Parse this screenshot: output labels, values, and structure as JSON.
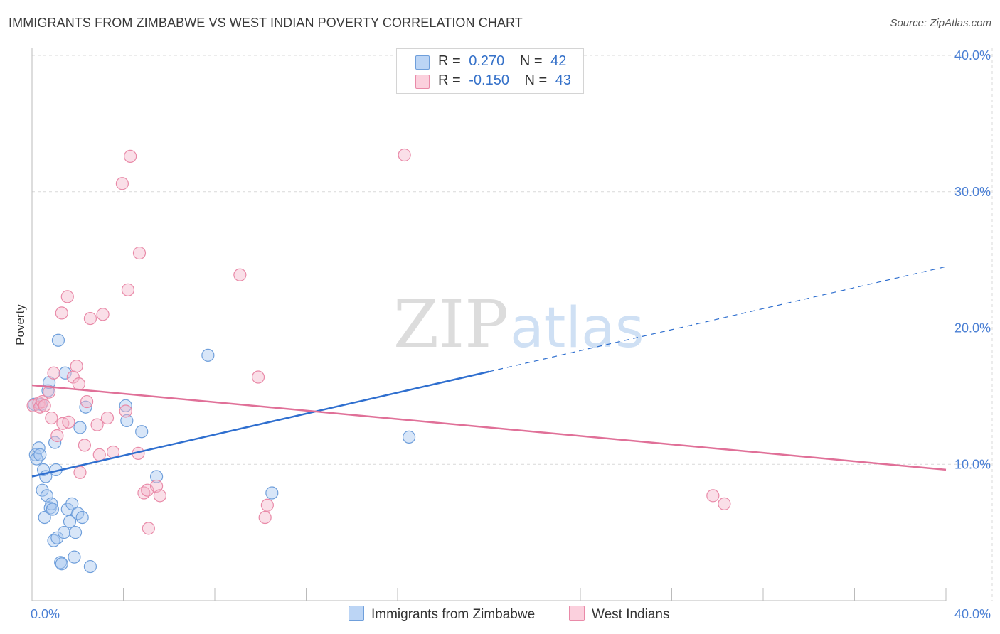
{
  "title": "IMMIGRANTS FROM ZIMBABWE VS WEST INDIAN POVERTY CORRELATION CHART",
  "source": "Source: ZipAtlas.com",
  "watermark": {
    "zip": "ZIP",
    "atlas": "atlas"
  },
  "legend": {
    "rows": [
      {
        "r_label": "R =",
        "r_value": "0.270",
        "n_label": "N =",
        "n_value": "42"
      },
      {
        "r_label": "R =",
        "r_value": "-0.150",
        "n_label": "N =",
        "n_value": "43"
      }
    ]
  },
  "colors": {
    "blue_fill": "#a8c8f0",
    "blue_stroke": "#6f9fdb",
    "blue_line": "#2f6fcf",
    "pink_fill": "#f5b8cb",
    "pink_stroke": "#e98aa8",
    "pink_line": "#e07098",
    "grid": "#d9d9d9",
    "tick_text": "#4a7fd4"
  },
  "chart_data": {
    "type": "scatter",
    "title": "IMMIGRANTS FROM ZIMBABWE VS WEST INDIAN POVERTY CORRELATION CHART",
    "xlabel": "",
    "ylabel": "Poverty",
    "xlim": [
      0,
      40
    ],
    "ylim": [
      0,
      40
    ],
    "x_tick_labels": [
      "0.0%",
      "40.0%"
    ],
    "y_ticks": [
      10,
      20,
      30,
      40
    ],
    "y_tick_labels": [
      "10.0%",
      "20.0%",
      "30.0%",
      "40.0%"
    ],
    "series": [
      {
        "name": "Immigrants from Zimbabwe",
        "color": "#6f9fdb",
        "x": [
          0.1,
          0.15,
          0.2,
          0.3,
          0.35,
          0.4,
          0.45,
          0.5,
          0.55,
          0.6,
          0.65,
          0.7,
          0.75,
          0.8,
          0.85,
          0.9,
          0.95,
          1.0,
          1.05,
          1.1,
          1.15,
          1.25,
          1.3,
          1.4,
          1.45,
          1.55,
          1.65,
          1.75,
          1.85,
          1.9,
          2.0,
          2.1,
          2.2,
          2.35,
          2.55,
          4.1,
          4.15,
          4.8,
          5.45,
          7.7,
          10.5,
          16.5
        ],
        "y": [
          14.4,
          10.7,
          10.4,
          11.2,
          10.7,
          14.4,
          8.1,
          9.6,
          6.1,
          9.1,
          7.7,
          15.4,
          16.0,
          6.8,
          7.1,
          6.7,
          4.4,
          11.6,
          9.6,
          4.6,
          19.1,
          2.8,
          2.7,
          5.0,
          16.7,
          6.7,
          5.8,
          7.1,
          3.2,
          5.0,
          6.4,
          12.7,
          6.1,
          14.2,
          2.5,
          14.3,
          13.2,
          12.4,
          9.1,
          18.0,
          7.9,
          12.0
        ]
      },
      {
        "name": "West Indians",
        "color": "#e98aa8",
        "x": [
          0.05,
          0.3,
          0.35,
          0.45,
          0.55,
          0.75,
          0.85,
          0.95,
          1.1,
          1.3,
          1.35,
          1.55,
          1.6,
          1.8,
          1.95,
          2.05,
          2.1,
          2.3,
          2.4,
          2.55,
          2.85,
          2.95,
          3.1,
          3.3,
          3.55,
          3.95,
          4.1,
          4.2,
          4.3,
          4.65,
          4.7,
          4.9,
          5.05,
          5.1,
          5.45,
          5.6,
          9.1,
          9.9,
          10.2,
          10.3,
          16.3,
          29.8,
          30.3
        ],
        "y": [
          14.3,
          14.5,
          14.2,
          14.6,
          14.3,
          15.3,
          13.4,
          16.7,
          12.1,
          21.1,
          13.0,
          22.3,
          13.1,
          16.4,
          17.2,
          15.9,
          9.4,
          11.4,
          14.6,
          20.7,
          12.9,
          10.7,
          21.0,
          13.4,
          10.9,
          30.6,
          13.9,
          22.8,
          32.6,
          10.8,
          25.5,
          7.9,
          8.1,
          5.3,
          8.4,
          7.7,
          23.9,
          16.4,
          6.1,
          7.0,
          32.7,
          7.7,
          7.1
        ]
      }
    ],
    "trendlines": [
      {
        "series": "Immigrants from Zimbabwe",
        "x_start": 0,
        "y_start": 9.1,
        "x_solid_end": 20,
        "x_end": 40,
        "y_end": 24.5,
        "style": "solid then dashed"
      },
      {
        "series": "West Indians",
        "x_start": 0,
        "y_start": 15.8,
        "x_end": 40,
        "y_end": 9.6,
        "style": "solid"
      }
    ],
    "grid": true,
    "legend_position": "top-center"
  }
}
